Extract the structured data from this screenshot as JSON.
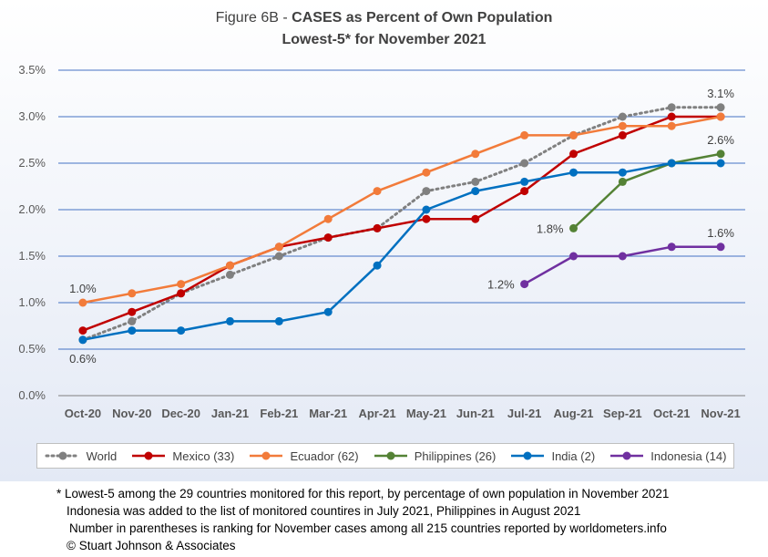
{
  "title": {
    "prefix": "Figure 6B - ",
    "bold": "CASES as Percent of Own Population",
    "line2": "Lowest-5* for November 2021"
  },
  "chart_data": {
    "type": "line",
    "categories": [
      "Oct-20",
      "Nov-20",
      "Dec-20",
      "Jan-21",
      "Feb-21",
      "Mar-21",
      "Apr-21",
      "May-21",
      "Jun-21",
      "Jul-21",
      "Aug-21",
      "Sep-21",
      "Oct-21",
      "Nov-21"
    ],
    "yticks": [
      "0.0%",
      "0.5%",
      "1.0%",
      "1.5%",
      "2.0%",
      "2.5%",
      "3.0%",
      "3.5%"
    ],
    "ylim": [
      0,
      3.5
    ],
    "grid": true,
    "legend_position": "bottom",
    "series": [
      {
        "name": "World",
        "color": "#808080",
        "dashed": true,
        "values": [
          0.6,
          0.8,
          1.1,
          1.3,
          1.5,
          1.7,
          1.8,
          2.2,
          2.3,
          2.5,
          2.8,
          3.0,
          3.1,
          3.1
        ]
      },
      {
        "name": "Mexico (33)",
        "color": "#c00000",
        "dashed": false,
        "values": [
          0.7,
          0.9,
          1.1,
          1.4,
          1.6,
          1.7,
          1.8,
          1.9,
          1.9,
          2.2,
          2.6,
          2.8,
          3.0,
          3.0
        ]
      },
      {
        "name": "Ecuador (62)",
        "color": "#f27b3a",
        "dashed": false,
        "values": [
          1.0,
          1.1,
          1.2,
          1.4,
          1.6,
          1.9,
          2.2,
          2.4,
          2.6,
          2.8,
          2.8,
          2.9,
          2.9,
          3.0
        ]
      },
      {
        "name": "Philippines (26)",
        "color": "#548235",
        "dashed": false,
        "values": [
          null,
          null,
          null,
          null,
          null,
          null,
          null,
          null,
          null,
          null,
          1.8,
          2.3,
          2.5,
          2.6
        ]
      },
      {
        "name": "India (2)",
        "color": "#0070c0",
        "dashed": false,
        "values": [
          0.6,
          0.7,
          0.7,
          0.8,
          0.8,
          0.9,
          1.4,
          2.0,
          2.2,
          2.3,
          2.4,
          2.4,
          2.5,
          2.5
        ]
      },
      {
        "name": "Indonesia (14)",
        "color": "#7030a0",
        "dashed": false,
        "values": [
          null,
          null,
          null,
          null,
          null,
          null,
          null,
          null,
          null,
          1.2,
          1.5,
          1.5,
          1.6,
          1.6
        ]
      }
    ],
    "annotations": [
      {
        "text": "1.0%",
        "series": 2,
        "index": 0,
        "pos": "above"
      },
      {
        "text": "0.6%",
        "series": 4,
        "index": 0,
        "pos": "below"
      },
      {
        "text": "1.2%",
        "series": 5,
        "index": 9,
        "pos": "left"
      },
      {
        "text": "1.8%",
        "series": 3,
        "index": 10,
        "pos": "left"
      },
      {
        "text": "3.1%",
        "series": 0,
        "index": 13,
        "pos": "above"
      },
      {
        "text": "2.6%",
        "series": 3,
        "index": 13,
        "pos": "above"
      },
      {
        "text": "1.6%",
        "series": 5,
        "index": 13,
        "pos": "above"
      }
    ]
  },
  "footnotes": [
    "* Lowest-5 among the 29 countries monitored for this report, by percentage of own population in November 2021",
    "Indonesia was added to the list of monitored countires in July 2021, Philippines in August 2021",
    "Number in parentheses is ranking for November cases among all 215 countries reported by worldometers.info",
    "© Stuart Johnson & Associates"
  ]
}
